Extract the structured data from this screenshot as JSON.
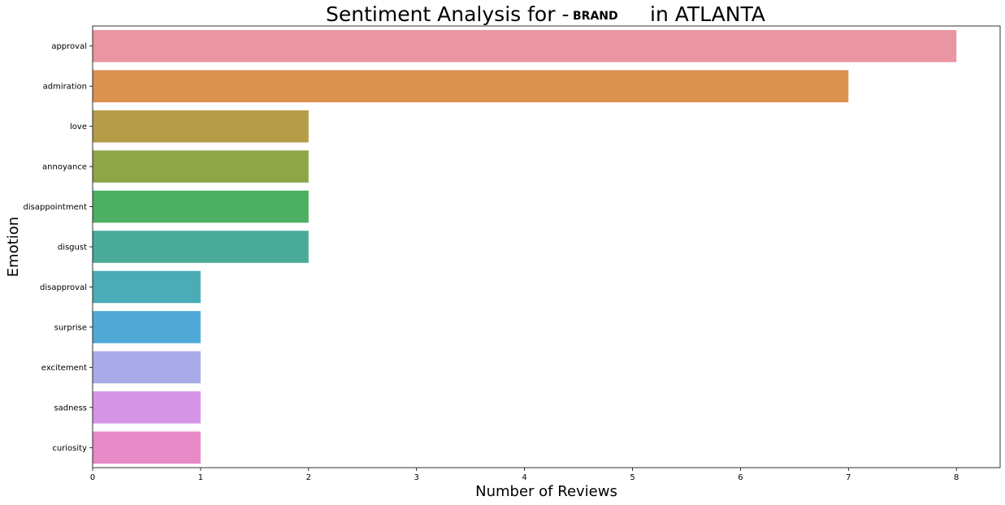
{
  "chart_data": {
    "type": "bar",
    "orientation": "horizontal",
    "title_left": "Sentiment Analysis for -",
    "title_brand": "BRAND",
    "title_right": "in ATLANTA",
    "xlabel": "Number of Reviews",
    "ylabel": "Emotion",
    "xlim": [
      0,
      8.4
    ],
    "xticks": [
      0,
      1,
      2,
      3,
      4,
      5,
      6,
      7,
      8
    ],
    "grid": false,
    "categories": [
      "approval",
      "admiration",
      "love",
      "annoyance",
      "disappointment",
      "disgust",
      "disapproval",
      "surprise",
      "excitement",
      "sadness",
      "curiosity"
    ],
    "values": [
      8,
      7,
      2,
      2,
      2,
      2,
      1,
      1,
      1,
      1,
      1
    ],
    "colors": [
      "#ea96a2",
      "#db914f",
      "#b59c49",
      "#8ea647",
      "#4caf62",
      "#4aab9a",
      "#4aacb6",
      "#50a9d4",
      "#a9aae8",
      "#d694e6",
      "#e889c8"
    ]
  }
}
